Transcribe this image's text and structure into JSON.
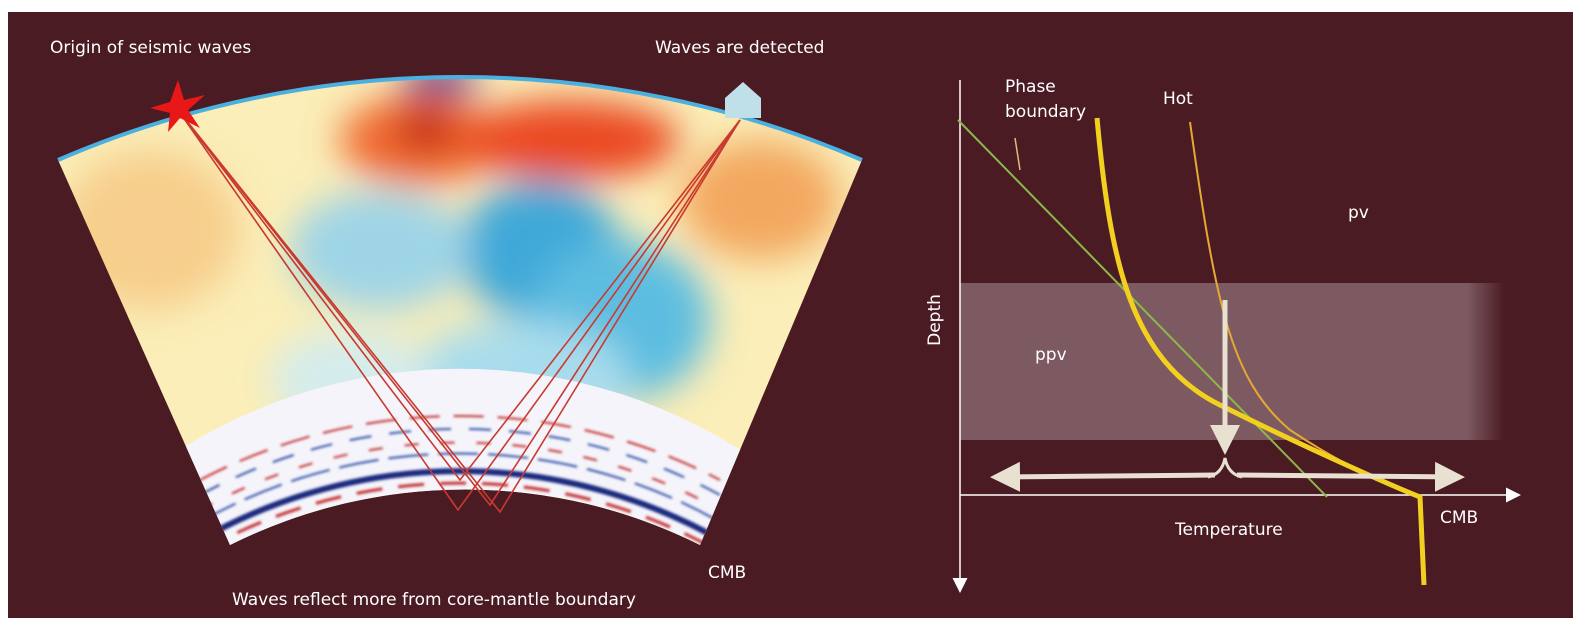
{
  "left_panel": {
    "source_label": "Origin of seismic waves",
    "detector_label": "Waves are detected",
    "caption": "Waves reflect more from core-mantle boundary",
    "cmb_label": "CMB"
  },
  "right_panel": {
    "phase_boundary_label": [
      "Phase",
      "boundary"
    ],
    "hot_label": "Hot",
    "pv_label": "pv",
    "ppv_label": "ppv",
    "y_axis_label": "Depth",
    "x_axis_label": "Temperature",
    "cmb_label": "CMB"
  }
}
